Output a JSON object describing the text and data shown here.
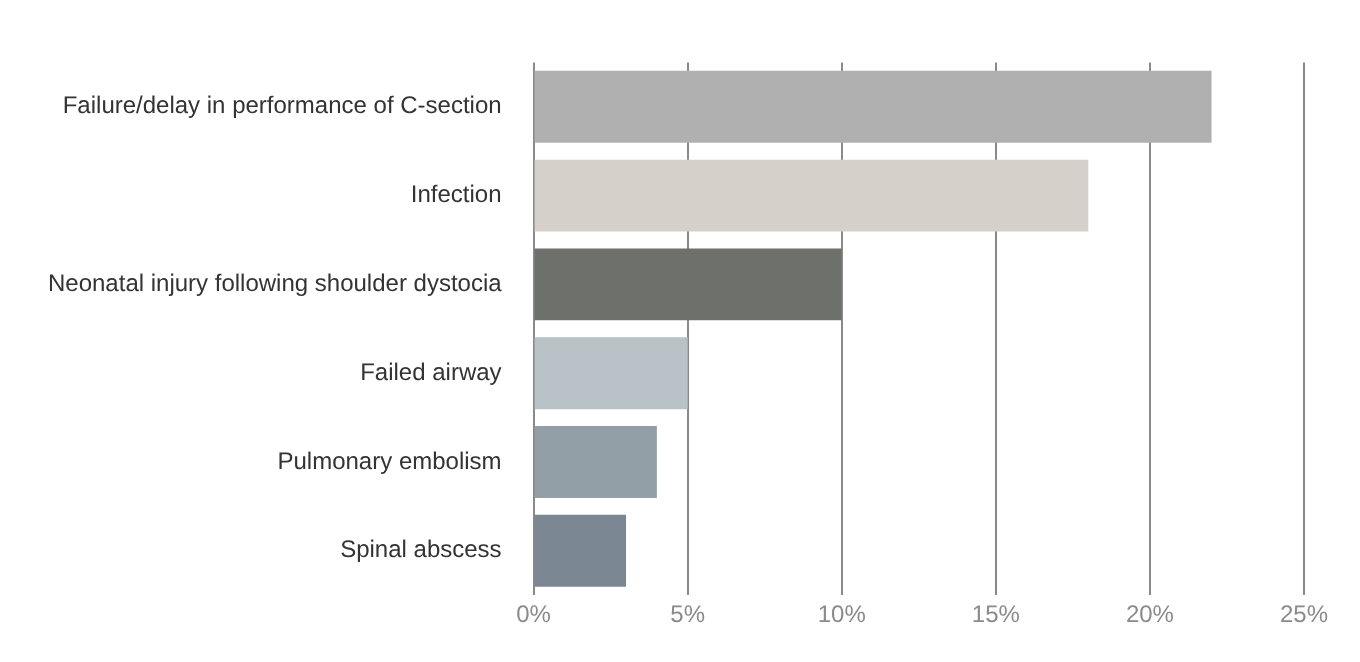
{
  "chart_data": {
    "type": "bar",
    "orientation": "horizontal",
    "categories": [
      "Failure/delay in performance of C-section",
      "Infection",
      "Neonatal injury following shoulder dystocia",
      "Failed airway",
      "Pulmonary embolism",
      "Spinal abscess"
    ],
    "values": [
      22,
      18,
      10,
      5,
      4,
      3
    ],
    "colors": [
      "#b0b0b0",
      "#d5d0ca",
      "#6e706c",
      "#b9c2c7",
      "#939fa7",
      "#7a8792"
    ],
    "xlim": [
      0,
      25
    ],
    "xticks": [
      {
        "value": 0,
        "label": "0%"
      },
      {
        "value": 5,
        "label": "5%"
      },
      {
        "value": 10,
        "label": "10%"
      },
      {
        "value": 15,
        "label": "15%"
      },
      {
        "value": 20,
        "label": "20%"
      },
      {
        "value": 25,
        "label": "25%"
      }
    ],
    "grid": "x",
    "legend": false
  }
}
